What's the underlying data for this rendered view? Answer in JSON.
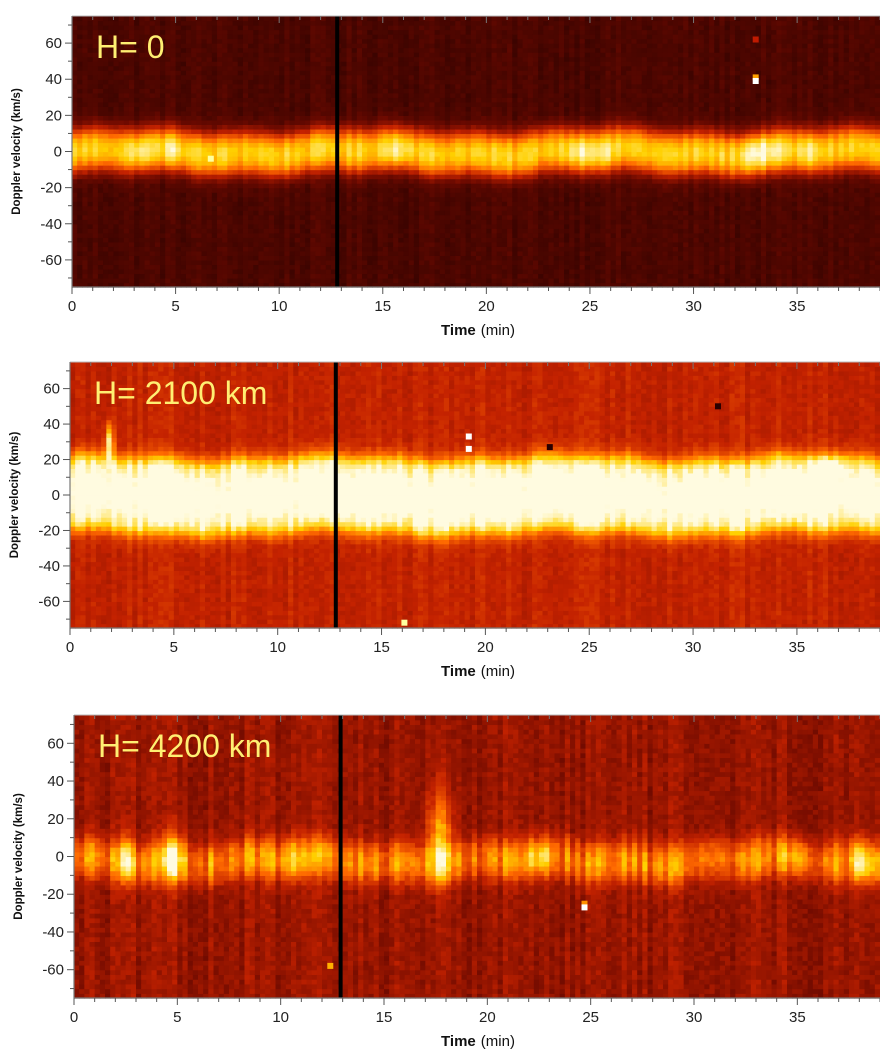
{
  "chart_data": [
    {
      "type": "heatmap",
      "title": "H= 0",
      "xlabel_bold": "Time",
      "xlabel_unit": "(min)",
      "ylabel": "Doppler velocity (km/s)",
      "xlim": [
        0,
        39
      ],
      "ylim": [
        -75,
        75
      ],
      "xticks": [
        0,
        5,
        10,
        15,
        20,
        25,
        30,
        35
      ],
      "yticks": [
        60,
        40,
        20,
        0,
        -20,
        -40,
        -60
      ],
      "colormap": [
        "#1a0000",
        "#6e0a00",
        "#c42200",
        "#ff6a00",
        "#ffd000",
        "#fffbe0"
      ],
      "marker_line_x": 12.8,
      "marker_line_color": "#000000",
      "band_center": 0,
      "band_halfwidth": 11,
      "band_intensity": 0.74,
      "band_core": 0.55,
      "background_intensity": 0.12,
      "noise": 0.04,
      "brightenings": [
        {
          "t": 3.3,
          "v": 0,
          "w": 0.5,
          "dv": 9,
          "amp": 0.12
        },
        {
          "t": 4.8,
          "v": 0,
          "w": 0.6,
          "dv": 9,
          "amp": 0.12
        },
        {
          "t": 15.7,
          "v": 0,
          "w": 0.7,
          "dv": 9,
          "amp": 0.14
        },
        {
          "t": 24.6,
          "v": 0,
          "w": 0.8,
          "dv": 10,
          "amp": 0.16
        },
        {
          "t": 25.6,
          "v": -3,
          "w": 0.5,
          "dv": 10,
          "amp": 0.12
        },
        {
          "t": 33.2,
          "v": 0,
          "w": 0.9,
          "dv": 10,
          "amp": 0.22
        },
        {
          "t": 35.6,
          "v": 0,
          "w": 0.5,
          "dv": 9,
          "amp": 0.1
        }
      ],
      "artifacts": [
        {
          "t": 33.0,
          "v": 62,
          "color": "#c01a00"
        },
        {
          "t": 33.0,
          "v": 41,
          "color": "#ffa000"
        },
        {
          "t": 33.0,
          "v": 39,
          "color": "#ffffff"
        },
        {
          "t": 6.7,
          "v": -4,
          "color": "#ffffa0"
        }
      ]
    },
    {
      "type": "heatmap",
      "title": "H= 2100 km",
      "xlabel_bold": "Time",
      "xlabel_unit": "(min)",
      "ylabel": "Doppler velocity (km/s)",
      "xlim": [
        0,
        39
      ],
      "ylim": [
        -75,
        75
      ],
      "xticks": [
        0,
        5,
        10,
        15,
        20,
        25,
        30,
        35
      ],
      "yticks": [
        60,
        40,
        20,
        0,
        -20,
        -40,
        -60
      ],
      "colormap": [
        "#1a0000",
        "#6e0a00",
        "#c42200",
        "#ff6a00",
        "#ffd000",
        "#fffbe0"
      ],
      "marker_line_x": 12.8,
      "marker_line_color": "#000000",
      "band_center": 0,
      "band_halfwidth": 21,
      "band_intensity": 0.98,
      "band_core": 0.9,
      "background_intensity": 0.4,
      "noise": 0.06,
      "brightenings": [
        {
          "t": 1.9,
          "v": 30,
          "w": 0.2,
          "dv": 10,
          "amp": 0.55
        },
        {
          "t": 36.5,
          "v": 18,
          "w": 0.8,
          "dv": 6,
          "amp": 0.2
        }
      ],
      "artifacts": [
        {
          "t": 19.2,
          "v": 33,
          "color": "#ffffff"
        },
        {
          "t": 19.2,
          "v": 26,
          "color": "#ffffff"
        },
        {
          "t": 23.1,
          "v": 27,
          "color": "#2a0000"
        },
        {
          "t": 31.2,
          "v": 50,
          "color": "#2a0000"
        },
        {
          "t": 16.1,
          "v": -72,
          "color": "#ffffa0"
        }
      ]
    },
    {
      "type": "heatmap",
      "title": "H= 4200 km",
      "xlabel_bold": "Time",
      "xlabel_unit": "(min)",
      "ylabel": "Doppler velocity (km/s)",
      "xlim": [
        0,
        39
      ],
      "ylim": [
        -75,
        75
      ],
      "xticks": [
        0,
        5,
        10,
        15,
        20,
        25,
        30,
        35
      ],
      "yticks": [
        60,
        40,
        20,
        0,
        -20,
        -40,
        -60
      ],
      "colormap": [
        "#1a0000",
        "#6e0a00",
        "#c42200",
        "#ff6a00",
        "#ffd000",
        "#fffbe0"
      ],
      "marker_line_x": 12.9,
      "marker_line_color": "#000000",
      "band_center": -2,
      "band_halfwidth": 10,
      "band_intensity": 0.6,
      "band_core": 0.45,
      "background_intensity": 0.3,
      "noise": 0.09,
      "brightenings": [
        {
          "t": 2.5,
          "v": 0,
          "w": 0.25,
          "dv": 12,
          "amp": 0.35
        },
        {
          "t": 4.8,
          "v": 0,
          "w": 0.5,
          "dv": 14,
          "amp": 0.4
        },
        {
          "t": 10.5,
          "v": 0,
          "w": 0.5,
          "dv": 10,
          "amp": 0.18
        },
        {
          "t": 17.7,
          "v": 12,
          "w": 0.6,
          "dv": 22,
          "amp": 0.4
        },
        {
          "t": 22.5,
          "v": 0,
          "w": 0.6,
          "dv": 10,
          "amp": 0.25
        },
        {
          "t": 35.0,
          "v": 0,
          "w": 0.5,
          "dv": 10,
          "amp": 0.2
        },
        {
          "t": 38.2,
          "v": -3,
          "w": 0.6,
          "dv": 12,
          "amp": 0.3
        }
      ],
      "artifacts": [
        {
          "t": 24.7,
          "v": -25,
          "color": "#ff9000"
        },
        {
          "t": 24.7,
          "v": -27,
          "color": "#ffffff"
        },
        {
          "t": 12.4,
          "v": -58,
          "color": "#ffb000"
        }
      ]
    }
  ]
}
